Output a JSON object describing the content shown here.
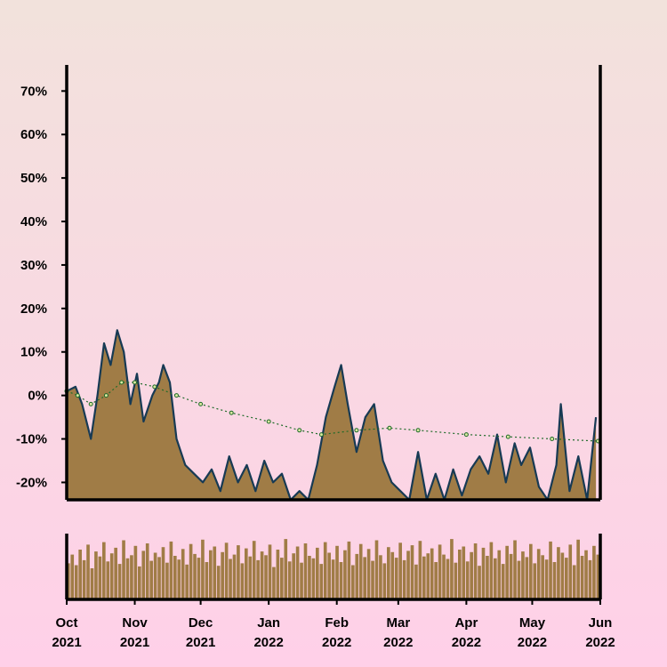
{
  "colors": {
    "bg_top": "#f2e2dc",
    "bg_bottom": "#ffd0e8",
    "area_fill": "#a07c46",
    "area_line": "#173a54",
    "ma_line": "#1f6b2a",
    "ma_marker_fill": "#d9e8a0",
    "volume_fill": "#a07c46",
    "axis": "#000000"
  },
  "chart_data": [
    {
      "type": "area",
      "title": "",
      "xlabel": "",
      "ylabel": "",
      "grid": false,
      "legend": "none",
      "xlim": [
        "2021-10-01",
        "2022-06-01"
      ],
      "ylim": [
        -24,
        76
      ],
      "yticks": [
        70,
        60,
        50,
        40,
        30,
        20,
        10,
        0,
        -10,
        -20
      ],
      "ytick_labels": [
        "70%",
        "60%",
        "50%",
        "40%",
        "30%",
        "20%",
        "10%",
        "0%",
        "-10%",
        "-20%"
      ],
      "series": [
        {
          "kind": "area",
          "points": [
            [
              "2021-10-01",
              1
            ],
            [
              "2021-10-05",
              2
            ],
            [
              "2021-10-08",
              -2
            ],
            [
              "2021-10-12",
              -10
            ],
            [
              "2021-10-15",
              0
            ],
            [
              "2021-10-18",
              12
            ],
            [
              "2021-10-21",
              7
            ],
            [
              "2021-10-24",
              15
            ],
            [
              "2021-10-27",
              10
            ],
            [
              "2021-10-30",
              -2
            ],
            [
              "2021-11-02",
              5
            ],
            [
              "2021-11-05",
              -6
            ],
            [
              "2021-11-09",
              0
            ],
            [
              "2021-11-12",
              3
            ],
            [
              "2021-11-14",
              7
            ],
            [
              "2021-11-17",
              3
            ],
            [
              "2021-11-20",
              -10
            ],
            [
              "2021-11-24",
              -16
            ],
            [
              "2021-11-28",
              -18
            ],
            [
              "2021-12-02",
              -20
            ],
            [
              "2021-12-06",
              -17
            ],
            [
              "2021-12-10",
              -22
            ],
            [
              "2021-12-14",
              -14
            ],
            [
              "2021-12-18",
              -20
            ],
            [
              "2021-12-22",
              -16
            ],
            [
              "2021-12-26",
              -22
            ],
            [
              "2021-12-30",
              -15
            ],
            [
              "2022-01-03",
              -20
            ],
            [
              "2022-01-07",
              -18
            ],
            [
              "2022-01-11",
              -24
            ],
            [
              "2022-01-15",
              -22
            ],
            [
              "2022-01-19",
              -24
            ],
            [
              "2022-01-23",
              -16
            ],
            [
              "2022-01-27",
              -5
            ],
            [
              "2022-01-31",
              2
            ],
            [
              "2022-02-03",
              7
            ],
            [
              "2022-02-06",
              -2
            ],
            [
              "2022-02-10",
              -13
            ],
            [
              "2022-02-14",
              -5
            ],
            [
              "2022-02-18",
              -2
            ],
            [
              "2022-02-22",
              -15
            ],
            [
              "2022-02-26",
              -20
            ],
            [
              "2022-03-02",
              -22
            ],
            [
              "2022-03-06",
              -24
            ],
            [
              "2022-03-10",
              -13
            ],
            [
              "2022-03-14",
              -24
            ],
            [
              "2022-03-18",
              -18
            ],
            [
              "2022-03-22",
              -24
            ],
            [
              "2022-03-26",
              -17
            ],
            [
              "2022-03-30",
              -23
            ],
            [
              "2022-04-03",
              -17
            ],
            [
              "2022-04-07",
              -14
            ],
            [
              "2022-04-11",
              -18
            ],
            [
              "2022-04-15",
              -9
            ],
            [
              "2022-04-19",
              -20
            ],
            [
              "2022-04-23",
              -11
            ],
            [
              "2022-04-26",
              -16
            ],
            [
              "2022-04-30",
              -12
            ],
            [
              "2022-05-04",
              -21
            ],
            [
              "2022-05-08",
              -24
            ],
            [
              "2022-05-12",
              -16
            ],
            [
              "2022-05-14",
              -2
            ],
            [
              "2022-05-18",
              -22
            ],
            [
              "2022-05-22",
              -14
            ],
            [
              "2022-05-26",
              -24
            ],
            [
              "2022-05-30",
              -5
            ]
          ]
        },
        {
          "kind": "line_with_markers",
          "points": [
            [
              "2021-10-01",
              1
            ],
            [
              "2021-10-06",
              0
            ],
            [
              "2021-10-12",
              -2
            ],
            [
              "2021-10-19",
              0
            ],
            [
              "2021-10-26",
              3
            ],
            [
              "2021-11-01",
              3
            ],
            [
              "2021-11-10",
              2
            ],
            [
              "2021-11-20",
              0
            ],
            [
              "2021-12-01",
              -2
            ],
            [
              "2021-12-15",
              -4
            ],
            [
              "2022-01-01",
              -6
            ],
            [
              "2022-01-15",
              -8
            ],
            [
              "2022-01-25",
              -9
            ],
            [
              "2022-02-10",
              -8
            ],
            [
              "2022-02-25",
              -7.5
            ],
            [
              "2022-03-10",
              -8
            ],
            [
              "2022-04-01",
              -9
            ],
            [
              "2022-04-20",
              -9.5
            ],
            [
              "2022-05-10",
              -10
            ],
            [
              "2022-05-31",
              -10.5
            ]
          ]
        }
      ]
    },
    {
      "type": "bar",
      "title": "",
      "xlabel": "",
      "ylabel": "",
      "xlim": [
        "2021-10-01",
        "2022-06-01"
      ],
      "xtick_labels": [
        {
          "month": "Oct",
          "year": "2021"
        },
        {
          "month": "Nov",
          "year": "2021"
        },
        {
          "month": "Dec",
          "year": "2021"
        },
        {
          "month": "Jan",
          "year": "2022"
        },
        {
          "month": "Feb",
          "year": "2022"
        },
        {
          "month": "Mar",
          "year": "2022"
        },
        {
          "month": "Apr",
          "year": "2022"
        },
        {
          "month": "May",
          "year": "2022"
        },
        {
          "month": "Jun",
          "year": "2022"
        }
      ],
      "values": [
        0.58,
        0.72,
        0.55,
        0.8,
        0.63,
        0.88,
        0.5,
        0.77,
        0.69,
        0.92,
        0.61,
        0.74,
        0.83,
        0.57,
        0.95,
        0.66,
        0.71,
        0.86,
        0.53,
        0.78,
        0.9,
        0.62,
        0.75,
        0.68,
        0.84,
        0.59,
        0.93,
        0.7,
        0.64,
        0.81,
        0.56,
        0.89,
        0.73,
        0.67,
        0.96,
        0.6,
        0.79,
        0.85,
        0.54,
        0.76,
        0.91,
        0.65,
        0.72,
        0.87,
        0.58,
        0.82,
        0.69,
        0.94,
        0.63,
        0.77,
        0.71,
        0.88,
        0.52,
        0.8,
        0.67,
        0.97,
        0.61,
        0.74,
        0.85,
        0.59,
        0.9,
        0.7,
        0.66,
        0.83,
        0.57,
        0.92,
        0.75,
        0.64,
        0.86,
        0.6,
        0.79,
        0.93,
        0.55,
        0.73,
        0.89,
        0.68,
        0.81,
        0.62,
        0.95,
        0.71,
        0.58,
        0.84,
        0.76,
        0.67,
        0.91,
        0.63,
        0.78,
        0.87,
        0.56,
        0.94,
        0.69,
        0.74,
        0.82,
        0.6,
        0.88,
        0.72,
        0.65,
        0.97,
        0.59,
        0.8,
        0.85,
        0.61,
        0.76,
        0.9,
        0.54,
        0.83,
        0.7,
        0.92,
        0.66,
        0.79,
        0.57,
        0.86,
        0.73,
        0.95,
        0.62,
        0.77,
        0.68,
        0.89,
        0.58,
        0.81,
        0.71,
        0.64,
        0.93,
        0.6,
        0.84,
        0.75,
        0.67,
        0.88,
        0.55,
        0.96,
        0.7,
        0.79,
        0.63,
        0.86,
        0.72
      ]
    }
  ]
}
